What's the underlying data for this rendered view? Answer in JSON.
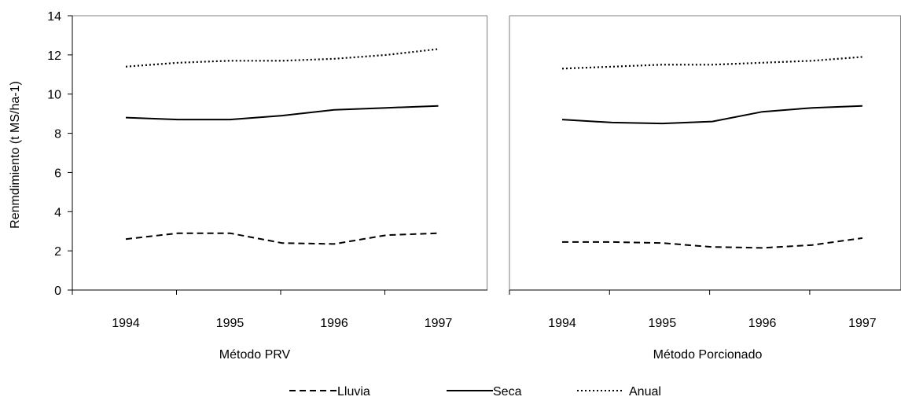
{
  "chart_data": [
    {
      "type": "line",
      "title": "",
      "xlabel": "Método PRV",
      "ylabel": "Renmdimiento (t MS/ha-1)",
      "ylim": [
        0,
        14
      ],
      "yticks": [
        0,
        2,
        4,
        6,
        8,
        10,
        12,
        14
      ],
      "tick_labels": [
        "1994",
        "1995",
        "1996",
        "1997"
      ],
      "x": [
        1994,
        1994.5,
        1995,
        1995.5,
        1996,
        1996.5,
        1997
      ],
      "series": [
        {
          "name": "Lluvia",
          "style": "dashed",
          "values": [
            2.6,
            2.9,
            2.9,
            2.4,
            2.35,
            2.8,
            2.9
          ]
        },
        {
          "name": "Seca",
          "style": "solid",
          "values": [
            8.8,
            8.7,
            8.7,
            8.9,
            9.2,
            9.3,
            9.4
          ]
        },
        {
          "name": "Anual",
          "style": "dotted",
          "values": [
            11.4,
            11.6,
            11.7,
            11.7,
            11.8,
            12.0,
            12.3
          ]
        }
      ],
      "grid": false
    },
    {
      "type": "line",
      "title": "",
      "xlabel": "Método Porcionado",
      "ylabel": "",
      "ylim": [
        0,
        14
      ],
      "tick_labels": [
        "1994",
        "1995",
        "1996",
        "1997"
      ],
      "x": [
        1994,
        1994.5,
        1995,
        1995.5,
        1996,
        1996.5,
        1997
      ],
      "series": [
        {
          "name": "Lluvia",
          "style": "dashed",
          "values": [
            2.45,
            2.45,
            2.4,
            2.2,
            2.15,
            2.3,
            2.65
          ]
        },
        {
          "name": "Seca",
          "style": "solid",
          "values": [
            8.7,
            8.55,
            8.5,
            8.6,
            9.1,
            9.3,
            9.4
          ]
        },
        {
          "name": "Anual",
          "style": "dotted",
          "values": [
            11.3,
            11.4,
            11.5,
            11.5,
            11.6,
            11.7,
            11.9
          ]
        }
      ],
      "grid": false
    }
  ],
  "legend": {
    "placement": "bottom-center",
    "items": [
      {
        "label": "Lluvia",
        "style": "dashed"
      },
      {
        "label": "Seca",
        "style": "solid"
      },
      {
        "label": "Anual",
        "style": "dotted"
      }
    ]
  }
}
